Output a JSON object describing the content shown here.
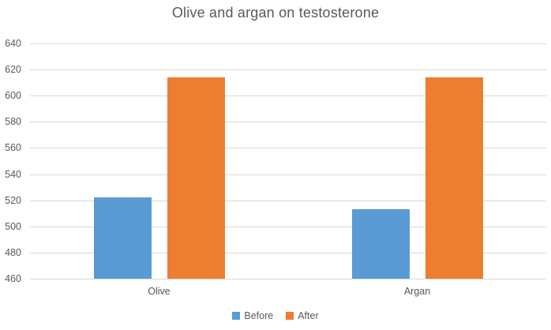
{
  "chart_data": {
    "type": "bar",
    "title": "Olive and argan on testosterone",
    "categories": [
      "Olive",
      "Argan"
    ],
    "series": [
      {
        "name": "Before",
        "color": "#5B9BD5",
        "values": [
          522,
          513
        ]
      },
      {
        "name": "After",
        "color": "#ED7D31",
        "values": [
          614,
          614
        ]
      }
    ],
    "xlabel": "",
    "ylabel": "",
    "ylim": [
      460,
      640
    ],
    "ytick_step": 20,
    "yticks": [
      640,
      620,
      600,
      580,
      560,
      540,
      520,
      500,
      480,
      460
    ],
    "grid": "horizontal",
    "gridline_color": "#D9D9D9",
    "text_color": "#595959",
    "background_color": "#FFFFFF",
    "legend_position": "bottom"
  }
}
